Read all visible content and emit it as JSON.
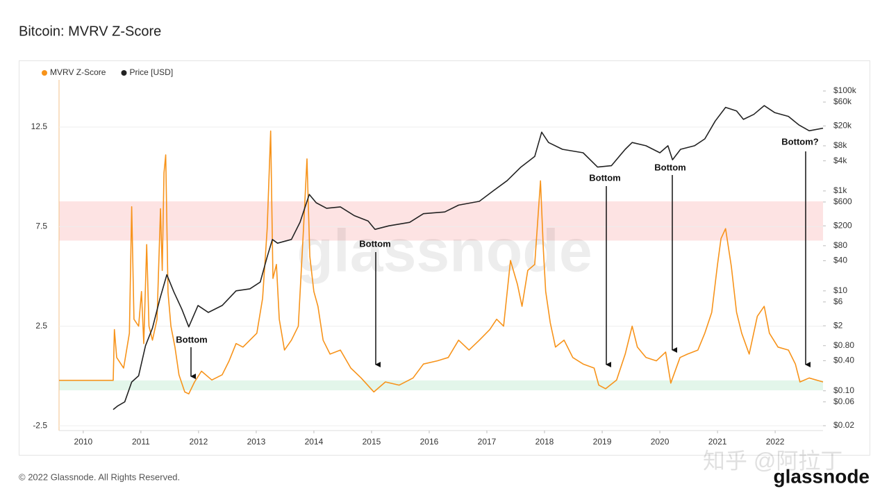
{
  "chart_data": {
    "type": "line",
    "title": "Bitcoin: MVRV Z-Score",
    "xlim": [
      2009.58,
      2022.83
    ],
    "xticks": [
      2010,
      2011,
      2012,
      2013,
      2014,
      2015,
      2016,
      2017,
      2018,
      2019,
      2020,
      2021,
      2022
    ],
    "ylim": [
      -2.74,
      14.87
    ],
    "yticks": [
      -2.5,
      2.5,
      7.5,
      12.5
    ],
    "y2lim": [
      0.016,
      167000
    ],
    "y2log": true,
    "y2ticks": [
      {
        "value": 100000,
        "label": "$100k"
      },
      {
        "value": 60000,
        "label": "$60k"
      },
      {
        "value": 20000,
        "label": "$20k"
      },
      {
        "value": 8000,
        "label": "$8k"
      },
      {
        "value": 4000,
        "label": "$4k"
      },
      {
        "value": 1000,
        "label": "$1k"
      },
      {
        "value": 600,
        "label": "$600"
      },
      {
        "value": 200,
        "label": "$200"
      },
      {
        "value": 80,
        "label": "$80"
      },
      {
        "value": 40,
        "label": "$40"
      },
      {
        "value": 10,
        "label": "$10"
      },
      {
        "value": 6,
        "label": "$6"
      },
      {
        "value": 2,
        "label": "$2"
      },
      {
        "value": 0.8,
        "label": "$0.80"
      },
      {
        "value": 0.4,
        "label": "$0.40"
      },
      {
        "value": 0.1,
        "label": "$0.10"
      },
      {
        "value": 0.06,
        "label": "$0.06"
      },
      {
        "value": 0.02,
        "label": "$0.02"
      }
    ],
    "bands": [
      {
        "range": [
          6.8,
          8.77
        ],
        "color": "#fde3e3"
      },
      {
        "range": [
          -0.72,
          -0.22
        ],
        "color": "#e3f6ea"
      }
    ],
    "legend": "top-left",
    "series": [
      {
        "name": "MVRV Z-Score",
        "color": "#f7931a",
        "x": [
          2009.58,
          2010.52,
          2010.54,
          2010.58,
          2010.7,
          2010.8,
          2010.84,
          2010.88,
          2010.96,
          2011.01,
          2011.05,
          2011.1,
          2011.14,
          2011.2,
          2011.28,
          2011.34,
          2011.37,
          2011.4,
          2011.43,
          2011.47,
          2011.52,
          2011.59,
          2011.66,
          2011.76,
          2011.83,
          2011.93,
          2012.05,
          2012.23,
          2012.41,
          2012.53,
          2012.65,
          2012.77,
          2012.89,
          2013.01,
          2013.11,
          2013.19,
          2013.25,
          2013.29,
          2013.35,
          2013.4,
          2013.49,
          2013.61,
          2013.73,
          2013.82,
          2013.88,
          2013.93,
          2014.0,
          2014.07,
          2014.16,
          2014.28,
          2014.46,
          2014.64,
          2014.82,
          2015.04,
          2015.24,
          2015.48,
          2015.72,
          2015.9,
          2016.14,
          2016.33,
          2016.51,
          2016.69,
          2016.87,
          2017.05,
          2017.17,
          2017.29,
          2017.41,
          2017.53,
          2017.61,
          2017.71,
          2017.83,
          2017.93,
          2017.98,
          2018.02,
          2018.1,
          2018.19,
          2018.34,
          2018.49,
          2018.67,
          2018.86,
          2018.94,
          2019.06,
          2019.25,
          2019.4,
          2019.52,
          2019.61,
          2019.76,
          2019.94,
          2020.1,
          2020.19,
          2020.35,
          2020.48,
          2020.66,
          2020.78,
          2020.9,
          2021.0,
          2021.06,
          2021.14,
          2021.24,
          2021.33,
          2021.42,
          2021.55,
          2021.69,
          2021.81,
          2021.9,
          2022.05,
          2022.23,
          2022.35,
          2022.43,
          2022.59,
          2022.83
        ],
        "values": [
          -0.22,
          -0.22,
          2.33,
          0.93,
          0.4,
          2.15,
          8.5,
          2.85,
          2.5,
          4.24,
          1.63,
          6.6,
          2.5,
          1.8,
          2.85,
          8.4,
          5.3,
          10.2,
          11.1,
          4.2,
          2.5,
          1.45,
          0.06,
          -0.8,
          -0.9,
          -0.3,
          0.24,
          -0.2,
          0.06,
          0.76,
          1.63,
          1.45,
          1.8,
          2.15,
          3.9,
          7.4,
          12.3,
          4.9,
          5.6,
          2.85,
          1.3,
          1.8,
          2.5,
          7.4,
          10.9,
          6.0,
          4.24,
          3.5,
          1.8,
          1.1,
          1.3,
          0.4,
          -0.1,
          -0.8,
          -0.3,
          -0.46,
          -0.1,
          0.6,
          0.76,
          0.93,
          1.8,
          1.3,
          1.8,
          2.33,
          2.85,
          2.5,
          5.8,
          4.6,
          3.5,
          5.3,
          5.6,
          9.8,
          6.3,
          4.24,
          2.67,
          1.45,
          1.8,
          0.93,
          0.6,
          0.4,
          -0.46,
          -0.64,
          -0.2,
          1.1,
          2.5,
          1.45,
          0.93,
          0.76,
          1.2,
          -0.36,
          0.93,
          1.1,
          1.3,
          2.15,
          3.2,
          5.6,
          6.9,
          7.4,
          5.5,
          3.2,
          2.15,
          1.1,
          3.0,
          3.5,
          2.15,
          1.45,
          1.3,
          0.6,
          -0.3,
          -0.1,
          -0.3
        ]
      },
      {
        "name": "Price [USD]",
        "color": "#222222",
        "axis": "y2",
        "x": [
          2010.52,
          2010.6,
          2010.72,
          2010.84,
          2010.96,
          2011.08,
          2011.2,
          2011.33,
          2011.45,
          2011.57,
          2011.71,
          2011.83,
          2011.99,
          2012.17,
          2012.41,
          2012.65,
          2012.89,
          2013.07,
          2013.19,
          2013.28,
          2013.37,
          2013.61,
          2013.76,
          2013.92,
          2014.04,
          2014.22,
          2014.46,
          2014.7,
          2014.94,
          2015.06,
          2015.3,
          2015.66,
          2015.9,
          2016.27,
          2016.51,
          2016.87,
          2017.11,
          2017.35,
          2017.59,
          2017.83,
          2017.95,
          2018.07,
          2018.31,
          2018.67,
          2018.92,
          2019.16,
          2019.4,
          2019.52,
          2019.76,
          2020.0,
          2020.14,
          2020.22,
          2020.36,
          2020.6,
          2020.78,
          2020.96,
          2021.14,
          2021.33,
          2021.45,
          2021.63,
          2021.81,
          2021.99,
          2022.23,
          2022.41,
          2022.59,
          2022.83
        ],
        "values": [
          0.042,
          0.05,
          0.06,
          0.15,
          0.2,
          0.8,
          1.8,
          7,
          21,
          9.6,
          4.3,
          1.9,
          5.1,
          3.7,
          5.1,
          10,
          11,
          15,
          48,
          107,
          90,
          107,
          236,
          850,
          580,
          450,
          480,
          320,
          250,
          170,
          200,
          235,
          350,
          380,
          520,
          620,
          1000,
          1600,
          3000,
          4900,
          15000,
          9300,
          6800,
          5800,
          3000,
          3200,
          6800,
          9300,
          8000,
          5800,
          8000,
          4200,
          6800,
          8000,
          11000,
          25000,
          47000,
          40000,
          27000,
          34000,
          51000,
          37000,
          31000,
          21000,
          16000,
          18000
        ]
      }
    ],
    "annotations": [
      "Bottom",
      "Bottom",
      "Bottom",
      "Bottom",
      "Bottom?"
    ]
  },
  "watermark": "glassnode",
  "footer": "© 2022 Glassnode. All Rights Reserved.",
  "logo": "glassnode",
  "credit": "知乎 @阿拉丁"
}
